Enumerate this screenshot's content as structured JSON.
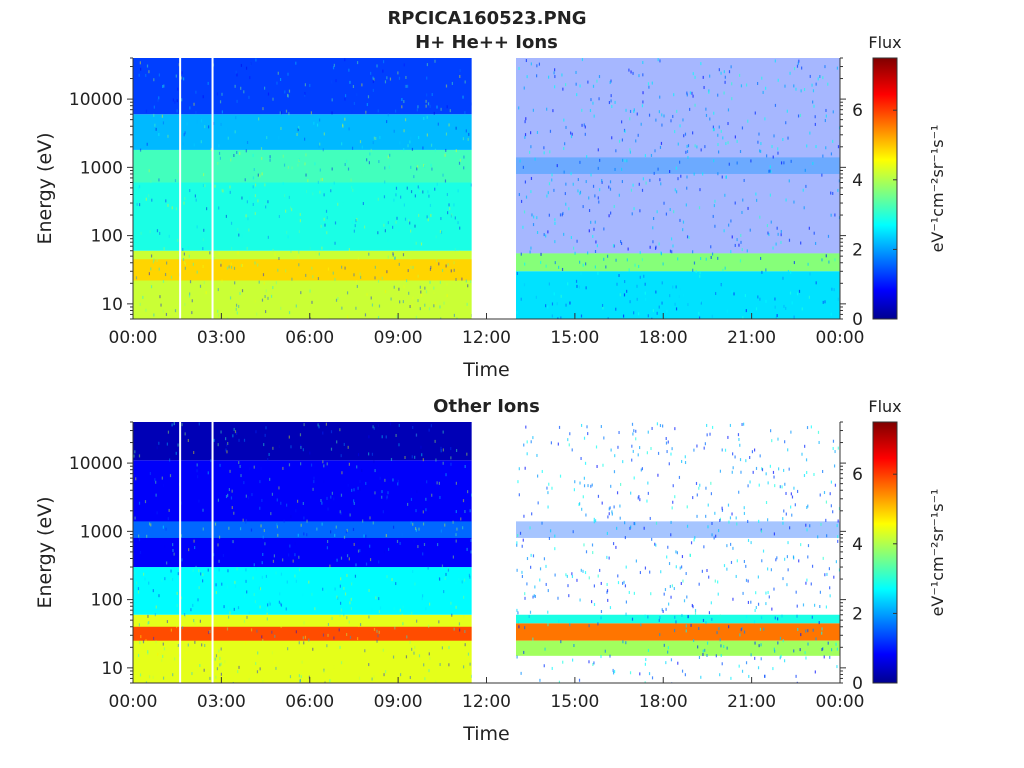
{
  "figure": {
    "title": "RPCICA160523.PNG"
  },
  "chart_data": [
    {
      "type": "heatmap",
      "title": "H+ He++ Ions",
      "xlabel": "Time",
      "ylabel": "Energy (eV)",
      "yscale": "log",
      "x_ticks": [
        "00:00",
        "03:00",
        "06:00",
        "09:00",
        "12:00",
        "15:00",
        "18:00",
        "21:00",
        "00:00"
      ],
      "x_tick_hours": [
        0,
        3,
        6,
        9,
        12,
        15,
        18,
        21,
        24
      ],
      "y_ticks": [
        "10",
        "100",
        "1000",
        "10000"
      ],
      "y_tick_values": [
        10,
        100,
        1000,
        10000
      ],
      "xlim_hours": [
        0,
        24
      ],
      "ylim": [
        6,
        40000
      ],
      "colorbar": {
        "label": "Flux",
        "unit": "eV⁻¹cm⁻²sr⁻¹s⁻¹",
        "range": [
          0,
          7.5
        ],
        "ticks": [
          "0",
          "2",
          "4",
          "6"
        ],
        "tick_values": [
          0,
          2,
          4,
          6
        ],
        "colormap": "jet"
      },
      "data_gap_hours": [
        11.5,
        13.0
      ],
      "vertical_gaps_hours": [
        1.6,
        2.7
      ],
      "bands": [
        {
          "segment": [
            0,
            11.5
          ],
          "energy_range": [
            6,
            60
          ],
          "flux": 4.3
        },
        {
          "segment": [
            0,
            11.5
          ],
          "energy_range": [
            22,
            45
          ],
          "flux": 5.0
        },
        {
          "segment": [
            0,
            11.5
          ],
          "energy_range": [
            60,
            600
          ],
          "flux": 3.0
        },
        {
          "segment": [
            0,
            11.5
          ],
          "energy_range": [
            600,
            1800
          ],
          "flux": 3.3
        },
        {
          "segment": [
            0,
            11.5
          ],
          "energy_range": [
            1800,
            6000
          ],
          "flux": 2.3
        },
        {
          "segment": [
            0,
            11.5
          ],
          "energy_range": [
            6000,
            40000
          ],
          "flux": 1.4
        },
        {
          "segment": [
            13.0,
            24
          ],
          "energy_range": [
            30,
            55
          ],
          "flux": 3.8
        },
        {
          "segment": [
            13.0,
            24
          ],
          "energy_range": [
            6,
            30
          ],
          "flux": 2.6
        },
        {
          "segment": [
            13.0,
            24
          ],
          "energy_range": [
            800,
            1400
          ],
          "flux": 2.4
        },
        {
          "segment": [
            13.0,
            24
          ],
          "energy_range": [
            55,
            40000
          ],
          "flux": 1.3
        }
      ]
    },
    {
      "type": "heatmap",
      "title": "Other Ions",
      "xlabel": "Time",
      "ylabel": "Energy (eV)",
      "yscale": "log",
      "x_ticks": [
        "00:00",
        "03:00",
        "06:00",
        "09:00",
        "12:00",
        "15:00",
        "18:00",
        "21:00",
        "00:00"
      ],
      "x_tick_hours": [
        0,
        3,
        6,
        9,
        12,
        15,
        18,
        21,
        24
      ],
      "y_ticks": [
        "10",
        "100",
        "1000",
        "10000"
      ],
      "y_tick_values": [
        10,
        100,
        1000,
        10000
      ],
      "xlim_hours": [
        0,
        24
      ],
      "ylim": [
        6,
        40000
      ],
      "colorbar": {
        "label": "Flux",
        "unit": "eV⁻¹cm⁻²sr⁻¹s⁻¹",
        "range": [
          0,
          7.5
        ],
        "ticks": [
          "0",
          "2",
          "4",
          "6"
        ],
        "tick_values": [
          0,
          2,
          4,
          6
        ],
        "colormap": "jet"
      },
      "data_gap_hours": [
        11.5,
        13.0
      ],
      "vertical_gaps_hours": [
        1.6,
        2.7
      ],
      "bands": [
        {
          "segment": [
            0,
            11.5
          ],
          "energy_range": [
            6,
            60
          ],
          "flux": 4.5
        },
        {
          "segment": [
            0,
            11.5
          ],
          "energy_range": [
            25,
            40
          ],
          "flux": 6.0
        },
        {
          "segment": [
            0,
            11.5
          ],
          "energy_range": [
            60,
            300
          ],
          "flux": 2.8
        },
        {
          "segment": [
            0,
            11.5
          ],
          "energy_range": [
            300,
            11000
          ],
          "flux": 0.9
        },
        {
          "segment": [
            0,
            11.5
          ],
          "energy_range": [
            800,
            1400
          ],
          "flux": 1.7
        },
        {
          "segment": [
            0,
            11.5
          ],
          "energy_range": [
            11000,
            40000
          ],
          "flux": 0.4
        },
        {
          "segment": [
            13.0,
            24
          ],
          "energy_range": [
            25,
            45
          ],
          "flux": 5.7
        },
        {
          "segment": [
            13.0,
            24
          ],
          "energy_range": [
            15,
            25
          ],
          "flux": 4.0
        },
        {
          "segment": [
            13.0,
            24
          ],
          "energy_range": [
            45,
            60
          ],
          "flux": 3.0
        },
        {
          "segment": [
            13.0,
            24
          ],
          "energy_range": [
            800,
            1400
          ],
          "flux": 1.6
        }
      ]
    }
  ]
}
